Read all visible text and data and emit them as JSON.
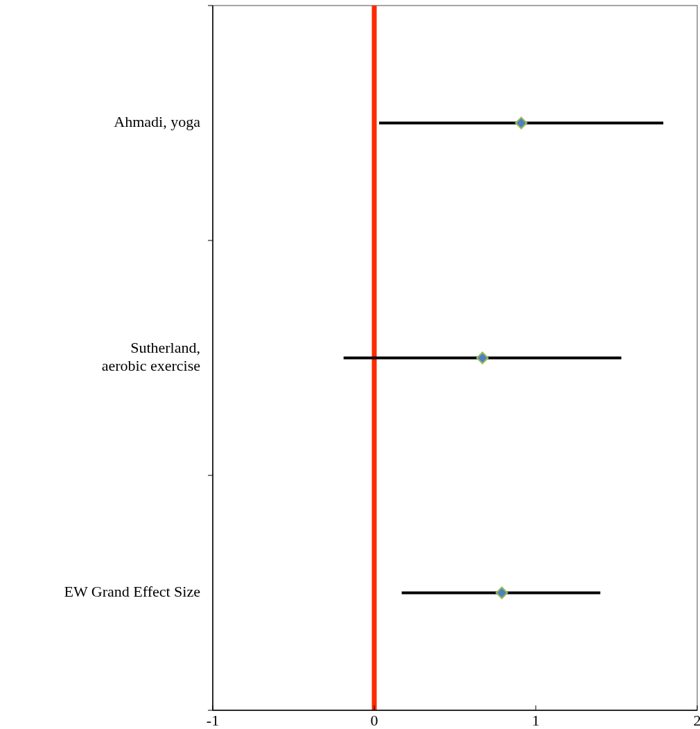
{
  "chart_data": {
    "type": "scatter",
    "orientation": "horizontal",
    "categories": [
      "Ahmadi, yoga",
      "Sutherland, aerobic exercise",
      "EW Grand Effect Size"
    ],
    "values": [
      0.91,
      0.67,
      0.79
    ],
    "errors": [
      [
        0.03,
        1.79
      ],
      [
        -0.19,
        1.53
      ],
      [
        0.17,
        1.4
      ]
    ],
    "color": "#4f81bd",
    "marker": "diamond",
    "xlim": [
      -1,
      2
    ],
    "xticks": [
      -1,
      0,
      1,
      2
    ],
    "ref_lines": [
      {
        "axis": "x",
        "value": 0,
        "color": "#ff2a00"
      }
    ],
    "grid": false
  }
}
